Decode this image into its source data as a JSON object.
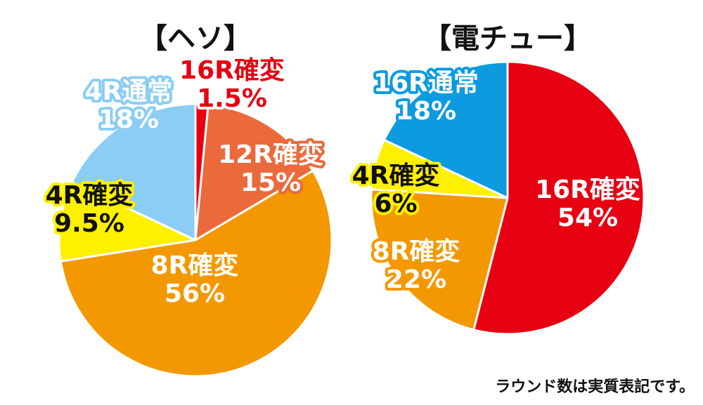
{
  "note": "ラウンド数は実質表記です。",
  "chart_data": [
    {
      "type": "pie",
      "title": "【ヘソ】",
      "slices": [
        {
          "label": "16R確変",
          "pct_text": "1.5%",
          "value": 1.5,
          "color": "#e60012",
          "label_fill": "#e60012",
          "label_stroke": "#ffffff"
        },
        {
          "label": "12R確変",
          "pct_text": "15%",
          "value": 15,
          "color": "#ea6a3c",
          "label_fill": "#ffffff",
          "label_stroke": "#ea6a3c"
        },
        {
          "label": "8R確変",
          "pct_text": "56%",
          "value": 56,
          "color": "#f39800",
          "label_fill": "#ffffff",
          "label_stroke": "#f39800"
        },
        {
          "label": "4R確変",
          "pct_text": "9.5%",
          "value": 9.5,
          "color": "#fff000",
          "label_fill": "#111111",
          "label_stroke": "#fff000"
        },
        {
          "label": "4R通常",
          "pct_text": "18%",
          "value": 18,
          "color": "#8bcdf4",
          "label_fill": "#ffffff",
          "label_stroke": "#8bcdf4"
        }
      ]
    },
    {
      "type": "pie",
      "title": "【電チュー】",
      "slices": [
        {
          "label": "16R確変",
          "pct_text": "54%",
          "value": 54,
          "color": "#e60012",
          "label_fill": "#ffffff",
          "label_stroke": "#e60012"
        },
        {
          "label": "8R確変",
          "pct_text": "22%",
          "value": 22,
          "color": "#f39800",
          "label_fill": "#ffffff",
          "label_stroke": "#f39800"
        },
        {
          "label": "4R確変",
          "pct_text": "6%",
          "value": 6,
          "color": "#fff000",
          "label_fill": "#111111",
          "label_stroke": "#fff000"
        },
        {
          "label": "16R通常",
          "pct_text": "18%",
          "value": 18,
          "color": "#0c9be0",
          "label_fill": "#ffffff",
          "label_stroke": "#0c9be0"
        }
      ]
    }
  ]
}
